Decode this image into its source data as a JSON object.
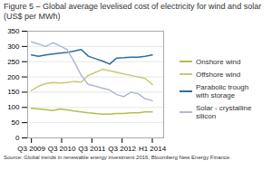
{
  "chart_data": {
    "type": "line",
    "title": "Figure 5 – Global average levelised cost of electricity for wind and solar (US$ per MWh)",
    "caption": "Source: Global trends in renewable energy investment 2016, Bloomberg New Energy Finance.",
    "x": [
      0,
      0.9411764705882353,
      1.8823529411764706,
      2.823529411764706,
      3.764705882352941,
      4.705882352941177,
      5.647058823529412,
      6.588235294117647,
      7.529411764705882,
      8.470588235294118,
      9.411764705882353,
      10.352941176470589,
      11.294117647058824,
      12.235294117647058,
      13.176470588235293,
      14.117647058823529,
      15.058823529411764,
      16
    ],
    "xlim": [
      -0.5,
      17.5
    ],
    "xticks": [
      {
        "value": 0,
        "label": "Q3 2009"
      },
      {
        "value": 4,
        "label": "Q3 2010"
      },
      {
        "value": 8,
        "label": "Q3 2011"
      },
      {
        "value": 12,
        "label": "Q3 2012"
      },
      {
        "value": 16,
        "label": "H1 2014"
      }
    ],
    "ylim": [
      0,
      350
    ],
    "yticks": [
      0,
      50,
      100,
      150,
      200,
      250,
      300,
      350
    ],
    "grid": true,
    "legend": "right",
    "series": [
      {
        "name": "Onshore wind",
        "color": "#b5bd4e",
        "values": [
          97,
          95,
          93,
          90,
          95,
          92,
          88,
          85,
          82,
          80,
          78,
          78,
          80,
          80,
          82,
          82,
          85,
          85
        ]
      },
      {
        "name": "Offshore wind",
        "color": "#c8c87a",
        "values": [
          155,
          170,
          178,
          182,
          180,
          182,
          185,
          183,
          205,
          215,
          225,
          220,
          215,
          210,
          205,
          200,
          195,
          175
        ]
      },
      {
        "name": "Parabolic trough\nwith storage",
        "color": "#2d6e9e",
        "values": [
          272,
          268,
          272,
          275,
          278,
          280,
          285,
          290,
          268,
          260,
          252,
          242,
          262,
          263,
          265,
          265,
          268,
          272
        ]
      },
      {
        "name": "Solar - crystalline\nsilicon",
        "color": "#b0b8d8",
        "values": [
          315,
          308,
          300,
          312,
          302,
          290,
          250,
          205,
          175,
          170,
          163,
          157,
          142,
          135,
          150,
          145,
          128,
          122
        ]
      }
    ]
  }
}
